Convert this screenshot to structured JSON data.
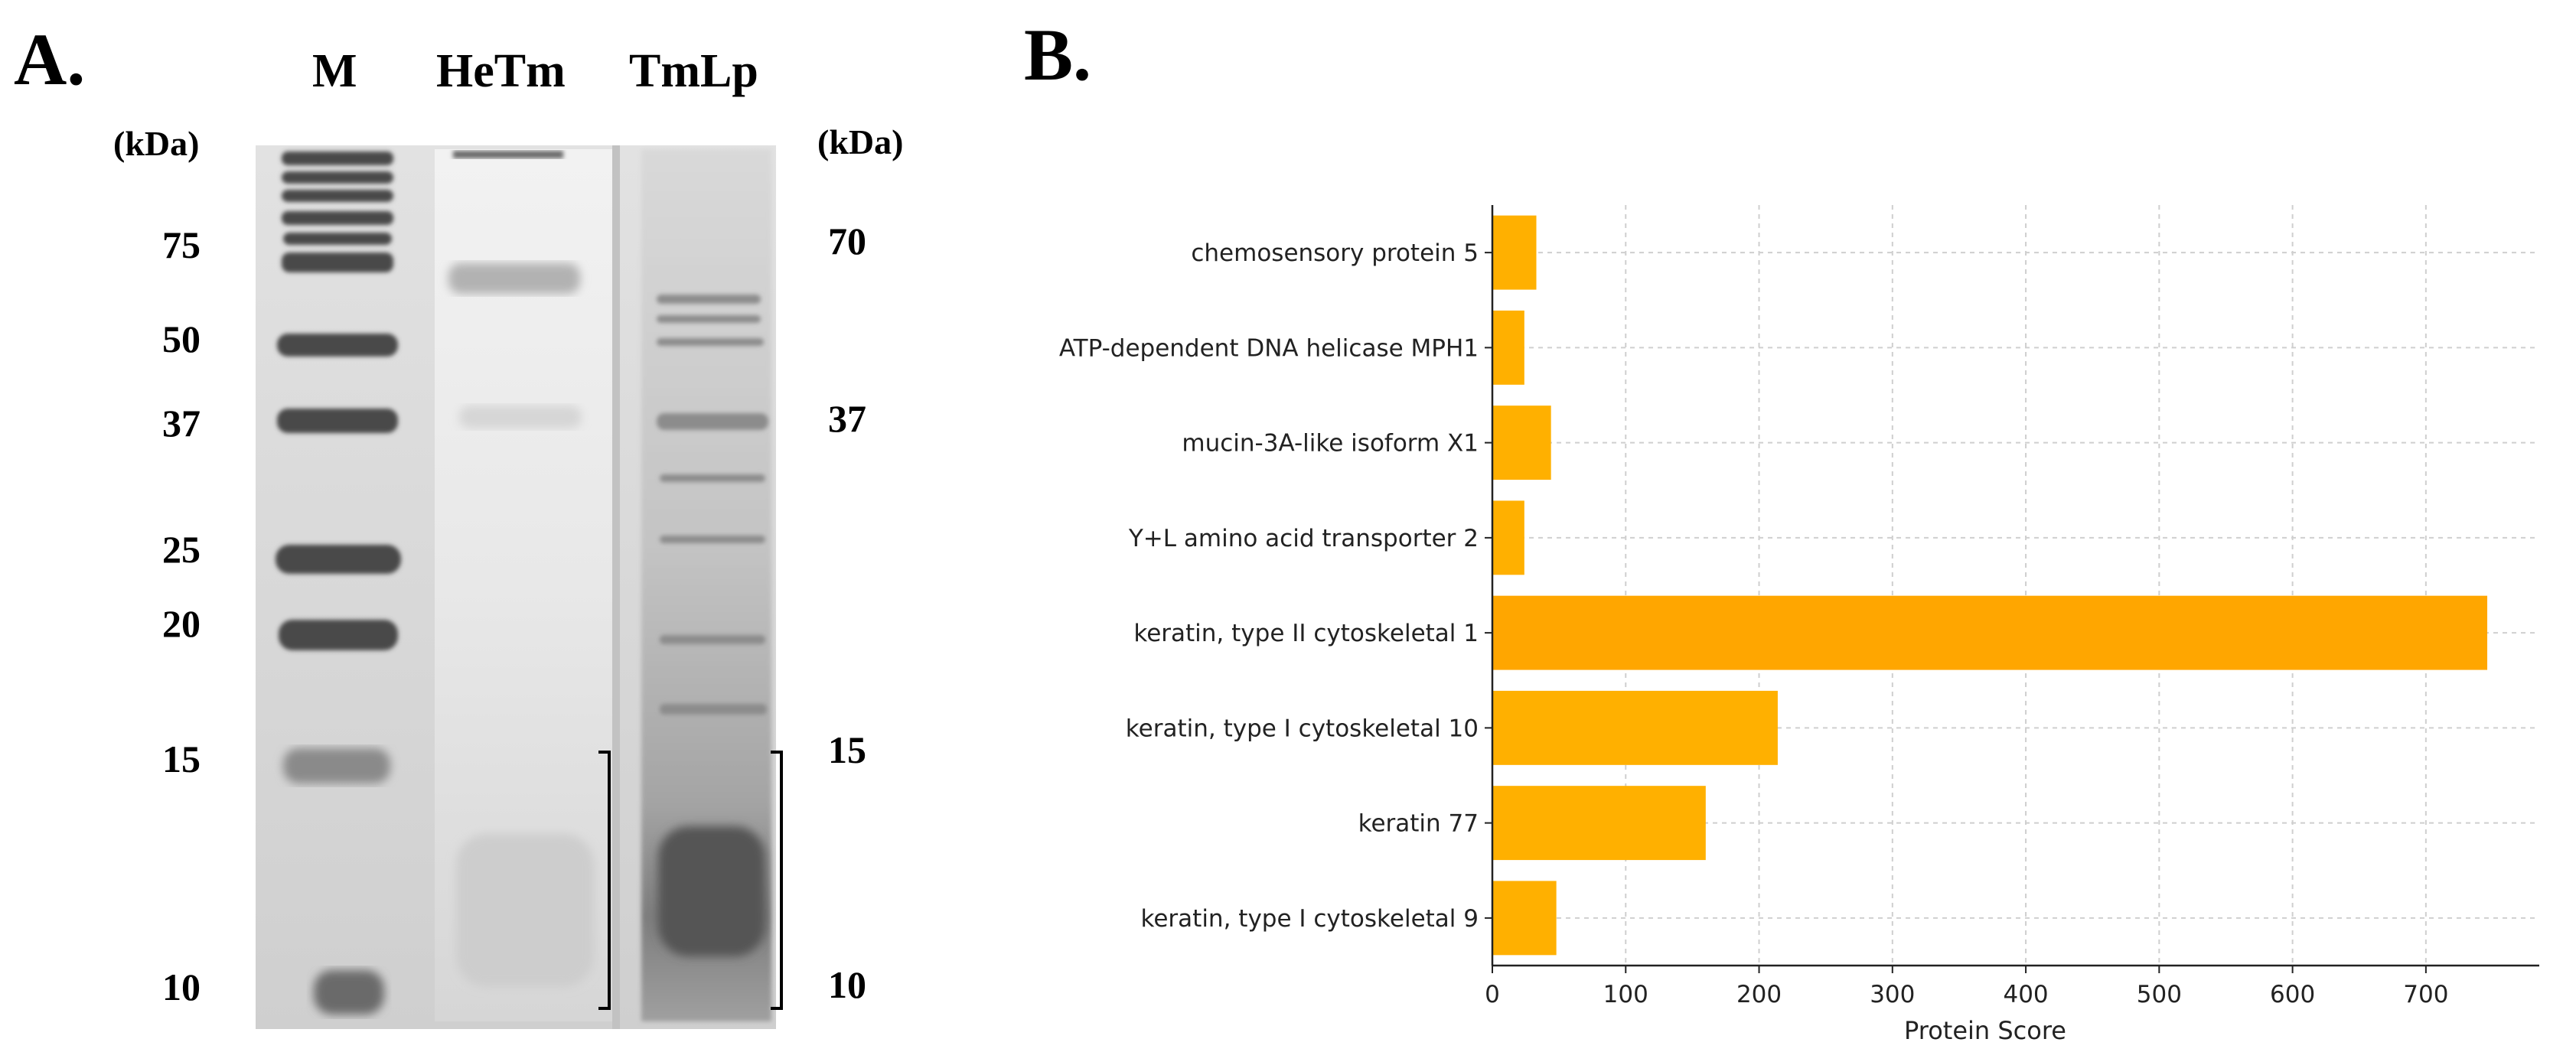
{
  "panel_a": {
    "label": "A.",
    "lanes": [
      "M",
      "HeTm",
      "TmLp"
    ],
    "left_unit": "(kDa)",
    "right_unit": "(kDa)",
    "left_markers": [
      "75",
      "50",
      "37",
      "25",
      "20",
      "15",
      "10"
    ],
    "right_markers": [
      "70",
      "37",
      "15",
      "10"
    ]
  },
  "panel_b": {
    "label": "B."
  },
  "chart_data": {
    "type": "bar",
    "orientation": "horizontal",
    "categories": [
      "chemosensory protein 5",
      "ATP-dependent DNA helicase MPH1",
      "mucin-3A-like isoform X1",
      "Y+L amino acid transporter 2",
      "keratin, type II cytoskeletal 1",
      "keratin, type I cytoskeletal 10",
      "keratin 77",
      "keratin, type I cytoskeletal 9"
    ],
    "values": [
      33,
      24,
      44,
      24,
      746,
      214,
      160,
      48
    ],
    "xlabel": "Protein Score",
    "ylabel": "",
    "xlim": [
      0,
      785
    ],
    "xticks": [
      "0",
      "100",
      "200",
      "300",
      "400",
      "500",
      "600",
      "700"
    ],
    "grid": true,
    "colors": {
      "bar": "#FFB000",
      "highlight": "#FFA600",
      "grid": "#cfcfcf"
    }
  }
}
